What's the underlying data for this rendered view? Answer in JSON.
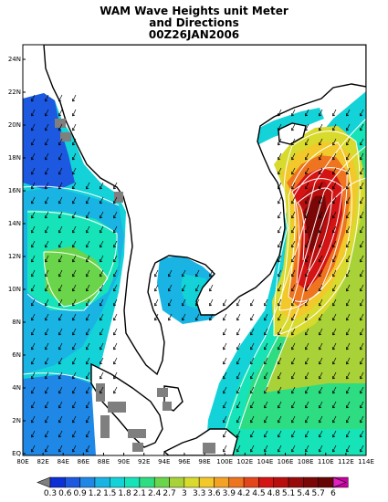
{
  "title": {
    "line1": "WAM Wave Heights unit Meter",
    "line2": "and Directions",
    "line3": "00Z26JAN2006"
  },
  "map": {
    "lon_ticks": [
      "80E",
      "82E",
      "84E",
      "86E",
      "88E",
      "90E",
      "92E",
      "94E",
      "96E",
      "98E",
      "100E",
      "102E",
      "104E",
      "106E",
      "108E",
      "110E",
      "112E",
      "114E"
    ],
    "lat_ticks": [
      "EQ",
      "2N",
      "4N",
      "6N",
      "8N",
      "10N",
      "12N",
      "14N",
      "16N",
      "18N",
      "20N",
      "22N",
      "24N"
    ],
    "lon_range": [
      98,
      116
    ],
    "lat_range": [
      0,
      25
    ]
  },
  "colorbar": {
    "labels": [
      "0.3",
      "0.6",
      "0.9",
      "1.2",
      "1.5",
      "1.8",
      "2.1",
      "2.4",
      "2.7",
      "3",
      "3.3",
      "3.6",
      "3.9",
      "4.2",
      "4.5",
      "4.8",
      "5.1",
      "5.4",
      "5.7",
      "6"
    ],
    "colors": [
      "#0c2fd6",
      "#1d58e0",
      "#1f88e6",
      "#19b4e4",
      "#13d2d8",
      "#16e4b8",
      "#2edc82",
      "#6ad44a",
      "#a8d238",
      "#d8da2e",
      "#f2c82a",
      "#f4a226",
      "#ee7420",
      "#e4461c",
      "#d41414",
      "#b80e0e",
      "#980a0a",
      "#7a0606",
      "#660404",
      "#c800a0",
      "#e020c0"
    ],
    "land_color": "#7f7f7f"
  }
}
